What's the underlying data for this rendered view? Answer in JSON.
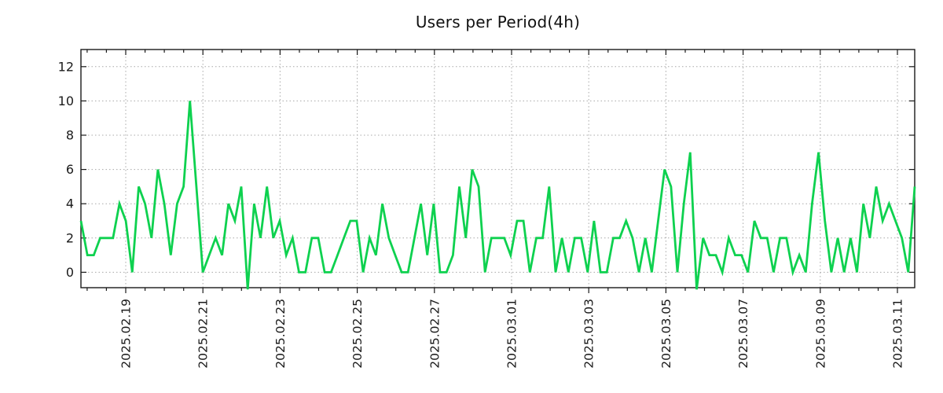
{
  "chart_data": {
    "type": "line",
    "title": "Users per Period(4h)",
    "xlabel": "",
    "ylabel": "",
    "period_hours": 4,
    "points_per_day": 6,
    "grid": "dotted",
    "legend_position": "none",
    "ylim": [
      -0.9,
      13.0
    ],
    "y_ticks": [
      0,
      2,
      4,
      6,
      8,
      10,
      12
    ],
    "x_tick_labels": [
      "2025.02.19",
      "2025.02.21",
      "2025.02.23",
      "2025.02.25",
      "2025.02.27",
      "2025.03.01",
      "2025.03.03",
      "2025.03.05",
      "2025.03.07",
      "2025.03.09",
      "2025.03.11"
    ],
    "colors": {
      "line": "#0ed14f",
      "grid": "#a8a8a8",
      "border": "#1a1a1a",
      "text": "#1a1a1a"
    },
    "series": [
      {
        "name": "users",
        "values": [
          3,
          1,
          1,
          2,
          2,
          2,
          4,
          3,
          0,
          5,
          4,
          2,
          6,
          4,
          1,
          4,
          5,
          10,
          5,
          0,
          1,
          2,
          1,
          4,
          3,
          5,
          -1,
          4,
          2,
          5,
          2,
          3,
          1,
          2,
          0,
          0,
          2,
          2,
          0,
          0,
          1,
          2,
          3,
          3,
          0,
          2,
          1,
          4,
          2,
          1,
          0,
          0,
          2,
          4,
          1,
          4,
          0,
          0,
          1,
          5,
          2,
          6,
          5,
          0,
          2,
          2,
          2,
          1,
          3,
          3,
          0,
          2,
          2,
          5,
          0,
          2,
          0,
          2,
          2,
          0,
          3,
          0,
          0,
          2,
          2,
          3,
          2,
          0,
          2,
          0,
          3,
          6,
          5,
          0,
          4,
          7,
          -1,
          2,
          1,
          1,
          0,
          2,
          1,
          1,
          0,
          3,
          2,
          2,
          0,
          2,
          2,
          0,
          1,
          0,
          4,
          7,
          3,
          0,
          2,
          0,
          2,
          0,
          4,
          2,
          5,
          3,
          4,
          3,
          2,
          0,
          5
        ]
      }
    ]
  }
}
